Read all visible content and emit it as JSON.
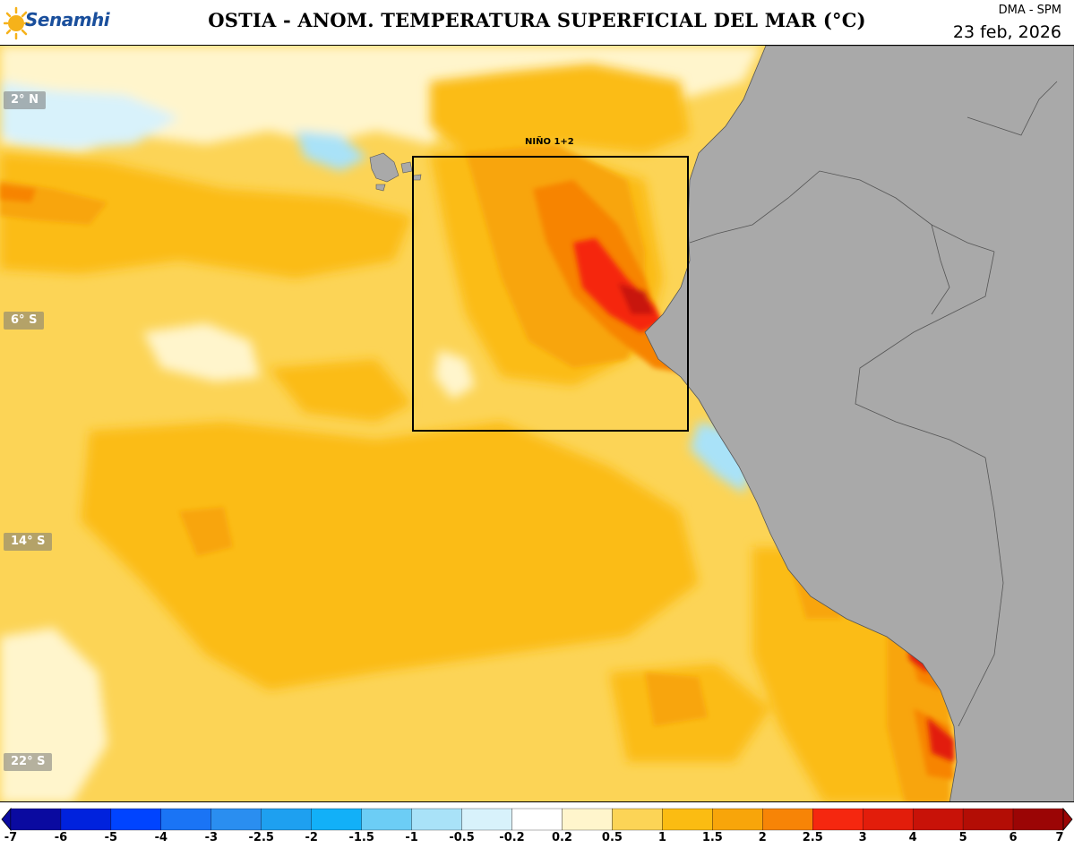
{
  "header": {
    "logo_text": "Senamhi",
    "title": "OSTIA - ANOM. TEMPERATURA SUPERFICIAL DEL MAR (°C)",
    "org": "DMA - SPM",
    "date": "23 feb, 2026"
  },
  "map": {
    "lat_labels": [
      "2° N",
      "6° S",
      "14° S",
      "22° S"
    ],
    "region_label": "NIÑO 1+2",
    "land_color": "#a9a9a9",
    "ocean_base_color": "#fcd456"
  },
  "colorbar": {
    "ticks": [
      "-7",
      "-6",
      "-5",
      "-4",
      "-3",
      "-2.5",
      "-2",
      "-1.5",
      "-1",
      "-0.5",
      "-0.2",
      "0.2",
      "0.5",
      "1",
      "1.5",
      "2",
      "2.5",
      "3",
      "4",
      "5",
      "6",
      "7"
    ],
    "colors": [
      "#0a0aa0",
      "#0022dd",
      "#0044ff",
      "#1a74f5",
      "#2a8ef0",
      "#1ea0f0",
      "#12b0f8",
      "#6ccdf5",
      "#a9e2f8",
      "#d8f2fb",
      "#ffffff",
      "#fff5cc",
      "#fcd456",
      "#fbbc12",
      "#f8a50a",
      "#f78406",
      "#f5270f",
      "#e21d0b",
      "#c81208",
      "#b30d05",
      "#9b0505"
    ]
  }
}
